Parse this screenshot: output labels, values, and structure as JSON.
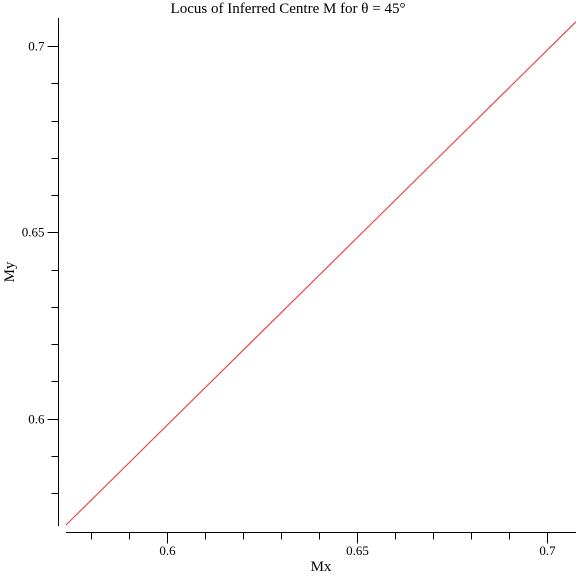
{
  "chart_data": {
    "type": "line",
    "title": "Locus of Inferred Centre M for θ = 45°",
    "xlabel": "Mx",
    "ylabel": "My",
    "xlim": [
      0.5735,
      0.7075
    ],
    "ylim": [
      0.5715,
      0.7075
    ],
    "grid": false,
    "x_major_ticks": [
      0.6,
      0.65,
      0.7
    ],
    "x_major_tick_labels": [
      "0.6",
      "0.65",
      "0.7"
    ],
    "x_minor_ticks": [
      0.58,
      0.59,
      0.61,
      0.62,
      0.63,
      0.64,
      0.66,
      0.67,
      0.68,
      0.69
    ],
    "y_major_ticks": [
      0.6,
      0.65,
      0.7
    ],
    "y_major_tick_labels": [
      "0.6",
      "0.65",
      "0.7"
    ],
    "y_minor_ticks": [
      0.58,
      0.59,
      0.61,
      0.62,
      0.63,
      0.64,
      0.66,
      0.67,
      0.68,
      0.69
    ],
    "series": [
      {
        "color": "#e8484b",
        "x": [
          0.5735,
          0.7075
        ],
        "y": [
          0.5715,
          0.7065
        ]
      }
    ]
  }
}
